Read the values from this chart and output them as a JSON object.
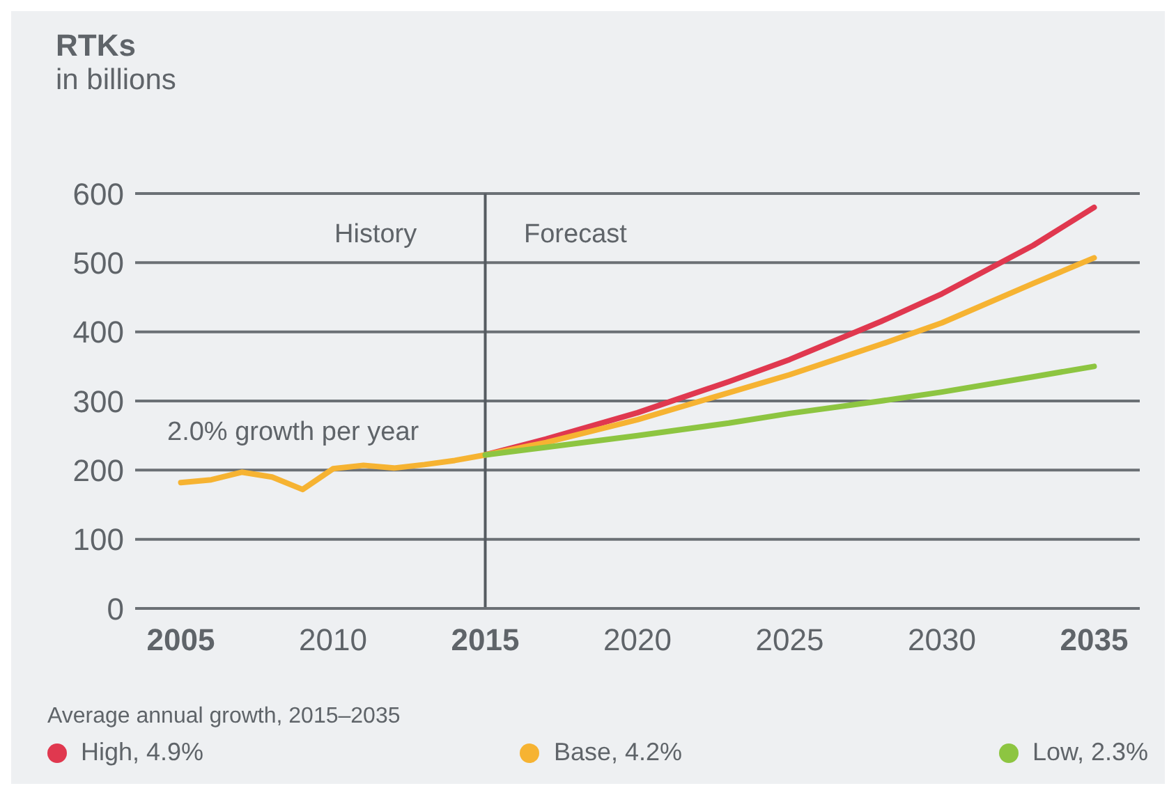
{
  "chart_data": {
    "type": "line",
    "title": "RTKs",
    "subtitle": "in billions",
    "legend_title": "Average annual growth, 2015–2035",
    "annotations": [
      "History",
      "Forecast",
      "2.0% growth per year"
    ],
    "xlim": [
      2003.5,
      2036.5
    ],
    "xticks": [
      2005,
      2010,
      2015,
      2020,
      2025,
      2030,
      2035
    ],
    "ylim": [
      0,
      600
    ],
    "yticks": [
      0,
      100,
      200,
      300,
      400,
      500,
      600
    ],
    "grid": "y",
    "legend": "bottom",
    "line_style": "solid",
    "marker": "none",
    "ref_lines": [
      {
        "axis": "x",
        "value": 2015,
        "color": "#555b61"
      }
    ],
    "series": [
      {
        "name": "High, 4.9%",
        "color": "#e0384f",
        "x": [
          2015,
          2017,
          2020,
          2023,
          2025,
          2028,
          2030,
          2033,
          2035
        ],
        "values": [
          222,
          245,
          283,
          328,
          360,
          415,
          455,
          525,
          580
        ]
      },
      {
        "name": "Base, 4.2%",
        "color": "#f6b332",
        "x": [
          2005,
          2006,
          2007,
          2008,
          2009,
          2010,
          2011,
          2012,
          2013,
          2014,
          2015,
          2017,
          2020,
          2023,
          2025,
          2028,
          2030,
          2033,
          2035
        ],
        "values": [
          182,
          186,
          197,
          190,
          172,
          202,
          207,
          203,
          208,
          214,
          222,
          240,
          273,
          312,
          338,
          382,
          413,
          470,
          507
        ]
      },
      {
        "name": "Low, 2.3%",
        "color": "#8dc541",
        "x": [
          2015,
          2017,
          2020,
          2023,
          2025,
          2028,
          2030,
          2033,
          2035
        ],
        "values": [
          222,
          233,
          250,
          268,
          282,
          300,
          313,
          335,
          350
        ]
      }
    ]
  }
}
